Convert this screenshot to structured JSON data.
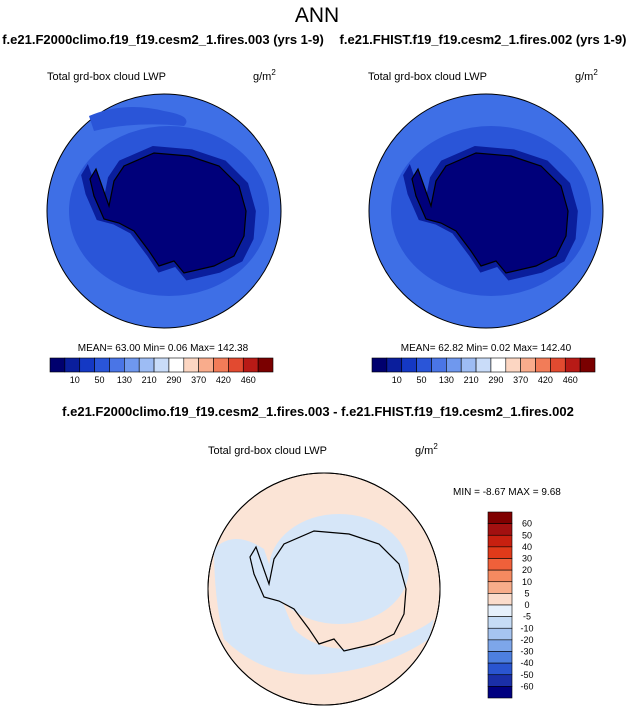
{
  "title": "ANN",
  "panels": [
    {
      "case": "f.e21.F2000climo.f19_f19.cesm2_1.fires.003 (yrs 1-9)",
      "variable": "Total grd-box cloud LWP",
      "units": "g/m",
      "units_power": "2",
      "stats": "MEAN=  63.00  Min=   0.06  Max= 142.38",
      "colorbar": {
        "colors": [
          "#00006e",
          "#0a1e9c",
          "#1438c4",
          "#2a55d8",
          "#4a75e6",
          "#6f98ee",
          "#9dbcf4",
          "#c9dcf9",
          "#ffffff",
          "#fcd6c2",
          "#f9ac8c",
          "#f27c58",
          "#e24a30",
          "#b81a16",
          "#7a0000"
        ],
        "labels": [
          10,
          50,
          130,
          210,
          290,
          370,
          420,
          460
        ]
      }
    },
    {
      "case": "f.e21.FHIST.f19_f19.cesm2_1.fires.002 (yrs 1-9)",
      "variable": "Total grd-box cloud LWP",
      "units": "g/m",
      "units_power": "2",
      "stats": "MEAN=  62.82  Min=   0.02  Max= 142.40",
      "colorbar": {
        "colors": [
          "#00006e",
          "#0a1e9c",
          "#1438c4",
          "#2a55d8",
          "#4a75e6",
          "#6f98ee",
          "#9dbcf4",
          "#c9dcf9",
          "#ffffff",
          "#fcd6c2",
          "#f9ac8c",
          "#f27c58",
          "#e24a30",
          "#b81a16",
          "#7a0000"
        ],
        "labels": [
          10,
          50,
          130,
          210,
          290,
          370,
          420,
          460
        ]
      }
    }
  ],
  "diff": {
    "title": "f.e21.F2000climo.f19_f19.cesm2_1.fires.003 - f.e21.FHIST.f19_f19.cesm2_1.fires.002",
    "variable": "Total grd-box cloud LWP",
    "units": "g/m",
    "units_power": "2",
    "stats": "MIN =  -8.67 MAX =   9.68",
    "colorbar": {
      "colors": [
        "#800000",
        "#a31010",
        "#c82010",
        "#e03a1a",
        "#f0603a",
        "#f58a60",
        "#f8ad8a",
        "#fbdccb",
        "#e6f0fb",
        "#c6dcf6",
        "#a6c4f0",
        "#7da6ea",
        "#4d7fe0",
        "#2a55d0",
        "#1a2fa8",
        "#000080"
      ],
      "labels": [
        60,
        50,
        40,
        30,
        20,
        10,
        5,
        0,
        -5,
        -10,
        -20,
        -30,
        -40,
        -50,
        -60
      ]
    }
  }
}
